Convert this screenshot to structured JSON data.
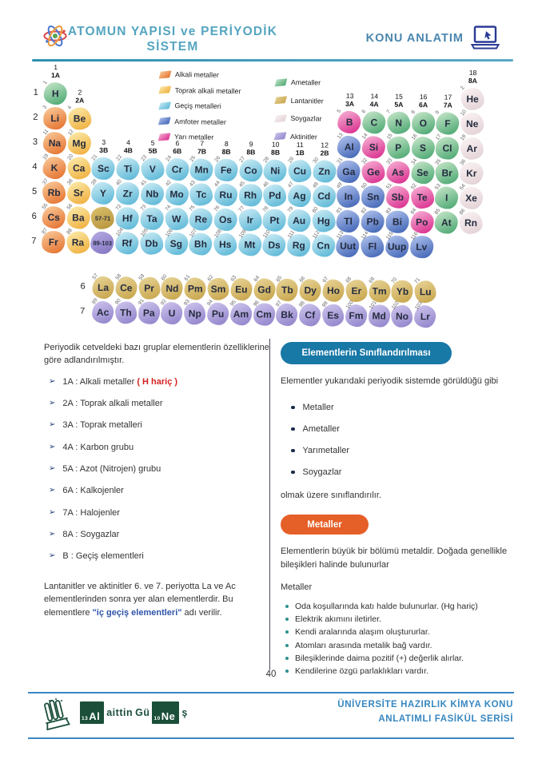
{
  "header": {
    "title_line1": "ATOMUN YAPISI ve PERİYODİK",
    "title_line2": "SİSTEM",
    "badge": "KONU ANLATIM"
  },
  "periodic_table": {
    "category_colors": {
      "alkali": [
        "#f8c492",
        "#e4712e"
      ],
      "toprak": [
        "#fbe7a4",
        "#efae3c"
      ],
      "gecis": [
        "#c6e9f3",
        "#59b6d6"
      ],
      "amfoter": [
        "#aabdea",
        "#4064b5"
      ],
      "yari": [
        "#f5a8d0",
        "#d92d8d"
      ],
      "ametal": [
        "#bfe2c4",
        "#4aa771"
      ],
      "soygaz": [
        "#f9f0f1",
        "#e2d1d5"
      ],
      "lantanit": [
        "#e6d193",
        "#c6a44a"
      ],
      "aktinit": [
        "#cac0ea",
        "#9183cb"
      ],
      "lantanit2": [
        "#d8bc68",
        "#b6943c"
      ],
      "aktinit2": [
        "#b2a5e0",
        "#8476c2"
      ]
    },
    "legend": {
      "left": [
        {
          "label": "Alkali metaller",
          "cat": "alkali"
        },
        {
          "label": "Toprak alkali metaller",
          "cat": "toprak"
        },
        {
          "label": "Geçiş metalleri",
          "cat": "gecis"
        },
        {
          "label": "Amfoter metaller",
          "cat": "amfoter"
        },
        {
          "label": "Yarı metaller",
          "cat": "yari"
        }
      ],
      "right": [
        {
          "label": "Ametaller",
          "cat": "ametal"
        },
        {
          "label": "Lantanitler",
          "cat": "lantanit"
        },
        {
          "label": "Soygazlar",
          "cat": "soygaz"
        },
        {
          "label": "Aktinitler",
          "cat": "aktinit"
        }
      ]
    },
    "group_headers": [
      {
        "col": 1,
        "num": "1",
        "group": "1A",
        "row": 1
      },
      {
        "col": 2,
        "num": "2",
        "group": "2A",
        "row": 2
      },
      {
        "col": 3,
        "num": "3",
        "group": "3B",
        "row": 4
      },
      {
        "col": 4,
        "num": "4",
        "group": "4B",
        "row": 4
      },
      {
        "col": 5,
        "num": "5",
        "group": "5B",
        "row": 4
      },
      {
        "col": 6,
        "num": "6",
        "group": "6B",
        "row": 4
      },
      {
        "col": 7,
        "num": "7",
        "group": "7B",
        "row": 4
      },
      {
        "col": 8,
        "num": "8",
        "group": "8B",
        "row": 4
      },
      {
        "col": 9,
        "num": "9",
        "group": "8B",
        "row": 4
      },
      {
        "col": 10,
        "num": "10",
        "group": "8B",
        "row": 4
      },
      {
        "col": 11,
        "num": "11",
        "group": "1B",
        "row": 4
      },
      {
        "col": 12,
        "num": "12",
        "group": "2B",
        "row": 4
      },
      {
        "col": 13,
        "num": "13",
        "group": "3A",
        "row": 2
      },
      {
        "col": 14,
        "num": "14",
        "group": "4A",
        "row": 2
      },
      {
        "col": 15,
        "num": "15",
        "group": "5A",
        "row": 2
      },
      {
        "col": 16,
        "num": "16",
        "group": "6A",
        "row": 2
      },
      {
        "col": 17,
        "num": "17",
        "group": "7A",
        "row": 2
      },
      {
        "col": 18,
        "num": "18",
        "group": "8A",
        "row": 1
      }
    ],
    "rows": [
      {
        "period": "1",
        "cells": [
          [
            "H",
            "1",
            1,
            "ametal"
          ],
          [
            "He",
            "2",
            18,
            "soygaz"
          ]
        ]
      },
      {
        "period": "2",
        "cells": [
          [
            "Li",
            "3",
            1,
            "alkali"
          ],
          [
            "Be",
            "4",
            2,
            "toprak"
          ],
          [
            "B",
            "5",
            13,
            "yari"
          ],
          [
            "C",
            "6",
            14,
            "ametal"
          ],
          [
            "N",
            "7",
            15,
            "ametal"
          ],
          [
            "O",
            "8",
            16,
            "ametal"
          ],
          [
            "F",
            "9",
            17,
            "ametal"
          ],
          [
            "Ne",
            "10",
            18,
            "soygaz"
          ]
        ]
      },
      {
        "period": "3",
        "cells": [
          [
            "Na",
            "11",
            1,
            "alkali"
          ],
          [
            "Mg",
            "12",
            2,
            "toprak"
          ],
          [
            "Al",
            "13",
            13,
            "amfoter"
          ],
          [
            "Si",
            "14",
            14,
            "yari"
          ],
          [
            "P",
            "15",
            15,
            "ametal"
          ],
          [
            "S",
            "16",
            16,
            "ametal"
          ],
          [
            "Cl",
            "17",
            17,
            "ametal"
          ],
          [
            "Ar",
            "18",
            18,
            "soygaz"
          ]
        ]
      },
      {
        "period": "4",
        "cells": [
          [
            "K",
            "19",
            1,
            "alkali"
          ],
          [
            "Ca",
            "20",
            2,
            "toprak"
          ],
          [
            "Sc",
            "21",
            3,
            "gecis"
          ],
          [
            "Ti",
            "22",
            4,
            "gecis"
          ],
          [
            "V",
            "23",
            5,
            "gecis"
          ],
          [
            "Cr",
            "24",
            6,
            "gecis"
          ],
          [
            "Mn",
            "25",
            7,
            "gecis"
          ],
          [
            "Fe",
            "26",
            8,
            "gecis"
          ],
          [
            "Co",
            "27",
            9,
            "gecis"
          ],
          [
            "Ni",
            "28",
            10,
            "gecis"
          ],
          [
            "Cu",
            "29",
            11,
            "gecis"
          ],
          [
            "Zn",
            "30",
            12,
            "gecis"
          ],
          [
            "Ga",
            "31",
            13,
            "amfoter"
          ],
          [
            "Ge",
            "32",
            14,
            "yari"
          ],
          [
            "As",
            "33",
            15,
            "yari"
          ],
          [
            "Se",
            "34",
            16,
            "ametal"
          ],
          [
            "Br",
            "35",
            17,
            "ametal"
          ],
          [
            "Kr",
            "36",
            18,
            "soygaz"
          ]
        ]
      },
      {
        "period": "5",
        "cells": [
          [
            "Rb",
            "37",
            1,
            "alkali"
          ],
          [
            "Sr",
            "38",
            2,
            "toprak"
          ],
          [
            "Y",
            "39",
            3,
            "gecis"
          ],
          [
            "Zr",
            "40",
            4,
            "gecis"
          ],
          [
            "Nb",
            "41",
            5,
            "gecis"
          ],
          [
            "Mo",
            "42",
            6,
            "gecis"
          ],
          [
            "Tc",
            "43",
            7,
            "gecis"
          ],
          [
            "Ru",
            "44",
            8,
            "gecis"
          ],
          [
            "Rh",
            "45",
            9,
            "gecis"
          ],
          [
            "Pd",
            "46",
            10,
            "gecis"
          ],
          [
            "Ag",
            "47",
            11,
            "gecis"
          ],
          [
            "Cd",
            "48",
            12,
            "gecis"
          ],
          [
            "In",
            "49",
            13,
            "amfoter"
          ],
          [
            "Sn",
            "50",
            14,
            "amfoter"
          ],
          [
            "Sb",
            "51",
            15,
            "yari"
          ],
          [
            "Te",
            "52",
            16,
            "yari"
          ],
          [
            "I",
            "53",
            17,
            "ametal"
          ],
          [
            "Xe",
            "54",
            18,
            "soygaz"
          ]
        ]
      },
      {
        "period": "6",
        "cells": [
          [
            "Cs",
            "55",
            1,
            "alkali"
          ],
          [
            "Ba",
            "56",
            2,
            "toprak"
          ],
          [
            "57-71",
            "",
            3,
            "lantanit2"
          ],
          [
            "Hf",
            "72",
            4,
            "gecis"
          ],
          [
            "Ta",
            "73",
            5,
            "gecis"
          ],
          [
            "W",
            "74",
            6,
            "gecis"
          ],
          [
            "Re",
            "75",
            7,
            "gecis"
          ],
          [
            "Os",
            "76",
            8,
            "gecis"
          ],
          [
            "Ir",
            "77",
            9,
            "gecis"
          ],
          [
            "Pt",
            "78",
            10,
            "gecis"
          ],
          [
            "Au",
            "79",
            11,
            "gecis"
          ],
          [
            "Hg",
            "80",
            12,
            "gecis"
          ],
          [
            "Tl",
            "81",
            13,
            "amfoter"
          ],
          [
            "Pb",
            "82",
            14,
            "amfoter"
          ],
          [
            "Bi",
            "83",
            15,
            "amfoter"
          ],
          [
            "Po",
            "84",
            16,
            "yari"
          ],
          [
            "At",
            "85",
            17,
            "ametal"
          ],
          [
            "Rn",
            "86",
            18,
            "soygaz"
          ]
        ]
      },
      {
        "period": "7",
        "cells": [
          [
            "Fr",
            "87",
            1,
            "alkali"
          ],
          [
            "Ra",
            "88",
            2,
            "toprak"
          ],
          [
            "89-103",
            "",
            3,
            "aktinit2"
          ],
          [
            "Rf",
            "104",
            4,
            "gecis"
          ],
          [
            "Db",
            "105",
            5,
            "gecis"
          ],
          [
            "Sg",
            "106",
            6,
            "gecis"
          ],
          [
            "Bh",
            "107",
            7,
            "gecis"
          ],
          [
            "Hs",
            "108",
            8,
            "gecis"
          ],
          [
            "Mt",
            "109",
            9,
            "gecis"
          ],
          [
            "Ds",
            "110",
            10,
            "gecis"
          ],
          [
            "Rg",
            "111",
            11,
            "gecis"
          ],
          [
            "Cn",
            "112",
            12,
            "gecis"
          ],
          [
            "Uut",
            "113",
            13,
            "amfoter"
          ],
          [
            "Fl",
            "114",
            14,
            "amfoter"
          ],
          [
            "Uup",
            "115",
            15,
            "amfoter"
          ],
          [
            "Lv",
            "116",
            16,
            "amfoter"
          ]
        ]
      }
    ],
    "f_rows": [
      {
        "period": "6",
        "cat": "lantanit",
        "cells": [
          [
            "La",
            "57"
          ],
          [
            "Ce",
            "58"
          ],
          [
            "Pr",
            "59"
          ],
          [
            "Nd",
            "60"
          ],
          [
            "Pm",
            "61"
          ],
          [
            "Sm",
            "62"
          ],
          [
            "Eu",
            "63"
          ],
          [
            "Gd",
            "64"
          ],
          [
            "Tb",
            "65"
          ],
          [
            "Dy",
            "66"
          ],
          [
            "Ho",
            "67"
          ],
          [
            "Er",
            "68"
          ],
          [
            "Tm",
            "69"
          ],
          [
            "Yb",
            "70"
          ],
          [
            "Lu",
            "71"
          ]
        ]
      },
      {
        "period": "7",
        "cat": "aktinit",
        "cells": [
          [
            "Ac",
            "89"
          ],
          [
            "Th",
            "90"
          ],
          [
            "Pa",
            "91"
          ],
          [
            "U",
            "92"
          ],
          [
            "Np",
            "93"
          ],
          [
            "Pu",
            "94"
          ],
          [
            "Am",
            "95"
          ],
          [
            "Cm",
            "96"
          ],
          [
            "Bk",
            "97"
          ],
          [
            "Cf",
            "98"
          ],
          [
            "Es",
            "99"
          ],
          [
            "Fm",
            "100"
          ],
          [
            "Md",
            "101"
          ],
          [
            "No",
            "102"
          ],
          [
            "Lr",
            "103"
          ]
        ]
      }
    ]
  },
  "left_col": {
    "intro": "Periyodik cetveldeki bazı gruplar elementlerin özelliklerine göre adlandırılmıştır.",
    "groups": [
      {
        "label": "1A",
        "name": "Alkali metaller",
        "extra": "( H hariç )"
      },
      {
        "label": "2A",
        "name": "Toprak alkali metaller"
      },
      {
        "label": "3A",
        "name": "Toprak metalleri"
      },
      {
        "label": "4A",
        "name": "Karbon grubu"
      },
      {
        "label": "5A",
        "name": "Azot (Nitrojen) grubu"
      },
      {
        "label": "6A",
        "name": "Kalkojenler"
      },
      {
        "label": "7A",
        "name": "Halojenler"
      },
      {
        "label": "8A",
        "name": "Soygazlar"
      },
      {
        "label": "B",
        "name": "Geçiş elementleri"
      }
    ],
    "note_pre": "Lantanitler ve aktinitler 6. ve 7. periyotta La ve Ac elementlerinden sonra yer alan elementlerdir. Bu elementlere ",
    "note_bold": "\"iç geçiş elementleri\"",
    "note_post": " adı verilir."
  },
  "right_col": {
    "section1_title": "Elementlerin Sınıflandırılması",
    "p1": "Elementler yukarıdaki periyodik sistemde görüldüğü gibi",
    "bullets1": [
      "Metaller",
      "Ametaller",
      "Yarımetaller",
      "Soygazlar"
    ],
    "p2": "olmak üzere sınıflandırılır.",
    "section2_title": "Metaller",
    "p3": "Elementlerin büyük bir bölümü metaldir. Doğada genellikle bileşikleri halinde bulunurlar",
    "p4": "Metaller",
    "bullets2": [
      "Oda koşullarında katı halde bulunurlar. (Hg hariç)",
      "Elektrik akımını iletirler.",
      "Kendi aralarında alaşım oluştururlar.",
      "Atomları arasında metalik bağ vardır.",
      "Bileşiklerinde daima pozitif (+) değerlik alırlar.",
      "Kendilerine özgü parlaklıkları vardır."
    ]
  },
  "footer": {
    "page_number": "40",
    "brand": {
      "sub1": "13",
      "sym1": "Al",
      "part1": "aittin",
      "part2": "Gü",
      "sub2": "10",
      "sym2": "Ne",
      "part3": "ş"
    },
    "series_line1": "ÜNİVERSİTE HAZIRLIK KİMYA KONU",
    "series_line2": "ANLATIMLI FASİKÜL SERİSİ"
  }
}
